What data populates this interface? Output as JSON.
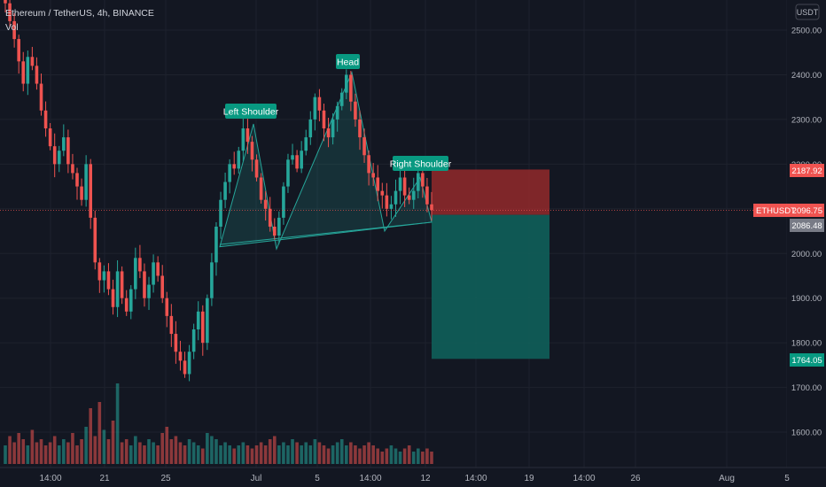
{
  "header": {
    "symbol_title": "Ethereum / TetherUS, 4h, BINANCE",
    "volume_label": "Vol"
  },
  "price_axis": {
    "currency": "USDT",
    "ticks": [
      "2500.00",
      "2400.00",
      "2300.00",
      "2200.00",
      "2100.00",
      "2000.00",
      "1900.00",
      "1800.00",
      "1700.00",
      "1600.00"
    ]
  },
  "time_axis": {
    "ticks": [
      "14:00",
      "21",
      "25",
      "Jul",
      "5",
      "14:00",
      "12",
      "14:00",
      "19",
      "14:00",
      "26",
      "Aug",
      "5"
    ]
  },
  "price_labels": {
    "stop_loss": "2187.92",
    "symbol_name": "ETHUSDT",
    "current_price": "2096.75",
    "entry": "2086.48",
    "take_profit": "1764.05"
  },
  "annotations": {
    "left_shoulder": "Left Shoulder",
    "head": "Head",
    "right_shoulder": "Right Shoulder"
  },
  "colors": {
    "background": "#131722",
    "up": "#26a69a",
    "down": "#ef5350",
    "axis_text": "#b2b5be",
    "grid": "#1e222d",
    "pattern_fill": "#26a69a",
    "risk_zone": "#9b2b2c",
    "reward_zone": "#0f5f5a",
    "price_line": "#ef5350",
    "entry_label_bg": "#787b86",
    "annotation_bg": "#089981"
  },
  "chart_data": {
    "type": "candlestick",
    "symbol": "ETHUSDT",
    "interval": "4h",
    "ylim": [
      1540,
      2560
    ],
    "y_scale": "linear",
    "grid": true,
    "pattern": "head-and-shoulders",
    "pattern_points": [
      {
        "label": "Left Shoulder",
        "price": 2290
      },
      {
        "label": "Head",
        "price": 2405
      },
      {
        "label": "Right Shoulder",
        "price": 2170
      }
    ],
    "neckline": [
      2020,
      2080
    ],
    "position": {
      "side": "short",
      "entry": 2086.48,
      "stop_loss": 2187.92,
      "take_profit": 1764.05
    },
    "last_price": 2096.75,
    "price_path": [
      2560,
      2520,
      2480,
      2430,
      2380,
      2440,
      2420,
      2380,
      2320,
      2280,
      2240,
      2200,
      2230,
      2260,
      2200,
      2180,
      2150,
      2120,
      2200,
      2080,
      1980,
      1940,
      1960,
      1920,
      1880,
      1960,
      1900,
      1870,
      1920,
      1990,
      1960,
      1900,
      1930,
      1980,
      1950,
      1900,
      1860,
      1820,
      1780,
      1760,
      1730,
      1780,
      1830,
      1870,
      1800,
      1900,
      1980,
      2060,
      2120,
      2160,
      2200,
      2190,
      2230,
      2280,
      2250,
      2210,
      2170,
      2120,
      2100,
      2060,
      2040,
      2080,
      2150,
      2210,
      2220,
      2190,
      2230,
      2260,
      2300,
      2350,
      2320,
      2280,
      2260,
      2300,
      2330,
      2360,
      2400,
      2340,
      2300,
      2260,
      2220,
      2180,
      2170,
      2140,
      2130,
      2100,
      2110,
      2140,
      2170,
      2130,
      2120,
      2140,
      2180,
      2150,
      2110,
      2097
    ],
    "volume_relative": [
      0.3,
      0.45,
      0.35,
      0.5,
      0.4,
      0.3,
      0.55,
      0.35,
      0.4,
      0.3,
      0.35,
      0.45,
      0.3,
      0.4,
      0.35,
      0.5,
      0.3,
      0.4,
      0.6,
      0.7,
      0.45,
      0.35,
      0.55,
      0.4,
      0.3,
      0.65,
      0.35,
      0.4,
      0.3,
      0.45,
      0.35,
      0.3,
      0.4,
      0.35,
      0.3,
      0.5,
      0.6,
      0.4,
      0.45,
      0.35,
      0.3,
      0.4,
      0.35,
      0.3,
      0.25,
      0.5,
      0.45,
      0.4,
      0.3,
      0.35,
      0.3,
      0.25,
      0.3,
      0.35,
      0.3,
      0.25,
      0.3,
      0.35,
      0.3,
      0.4,
      0.45,
      0.3,
      0.35,
      0.3,
      0.4,
      0.35,
      0.3,
      0.35,
      0.3,
      0.4,
      0.35,
      0.3,
      0.25,
      0.3,
      0.35,
      0.4,
      0.3,
      0.35,
      0.3,
      0.25,
      0.3,
      0.35,
      0.3,
      0.25,
      0.2,
      0.25,
      0.3,
      0.25,
      0.2,
      0.25,
      0.3,
      0.2,
      0.25,
      0.2,
      0.25,
      0.2
    ]
  }
}
